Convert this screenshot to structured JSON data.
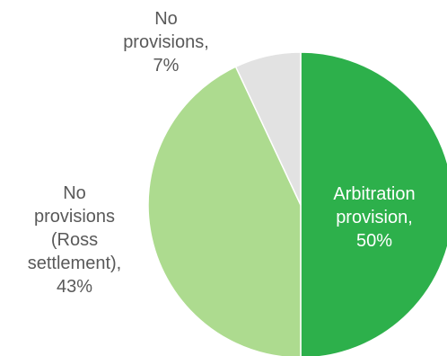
{
  "chart_data": {
    "type": "pie",
    "title": "",
    "start_angle_deg": 0,
    "direction": "clockwise",
    "slices": [
      {
        "label": "Arbitration provision",
        "value": 50,
        "color": "#2db04b",
        "label_lines": [
          "Arbitration",
          "provision,",
          "50%"
        ],
        "label_position": "inside"
      },
      {
        "label": "No provisions (Ross settlement)",
        "value": 43,
        "color": "#addb8f",
        "label_lines": [
          "No",
          "provisions",
          "(Ross",
          "settlement),",
          "43%"
        ],
        "label_position": "outside-left"
      },
      {
        "label": "No provisions",
        "value": 7,
        "color": "#e2e2e2",
        "label_lines": [
          "No",
          "provisions,",
          "7%"
        ],
        "label_position": "outside-top"
      }
    ],
    "legend": "none"
  }
}
